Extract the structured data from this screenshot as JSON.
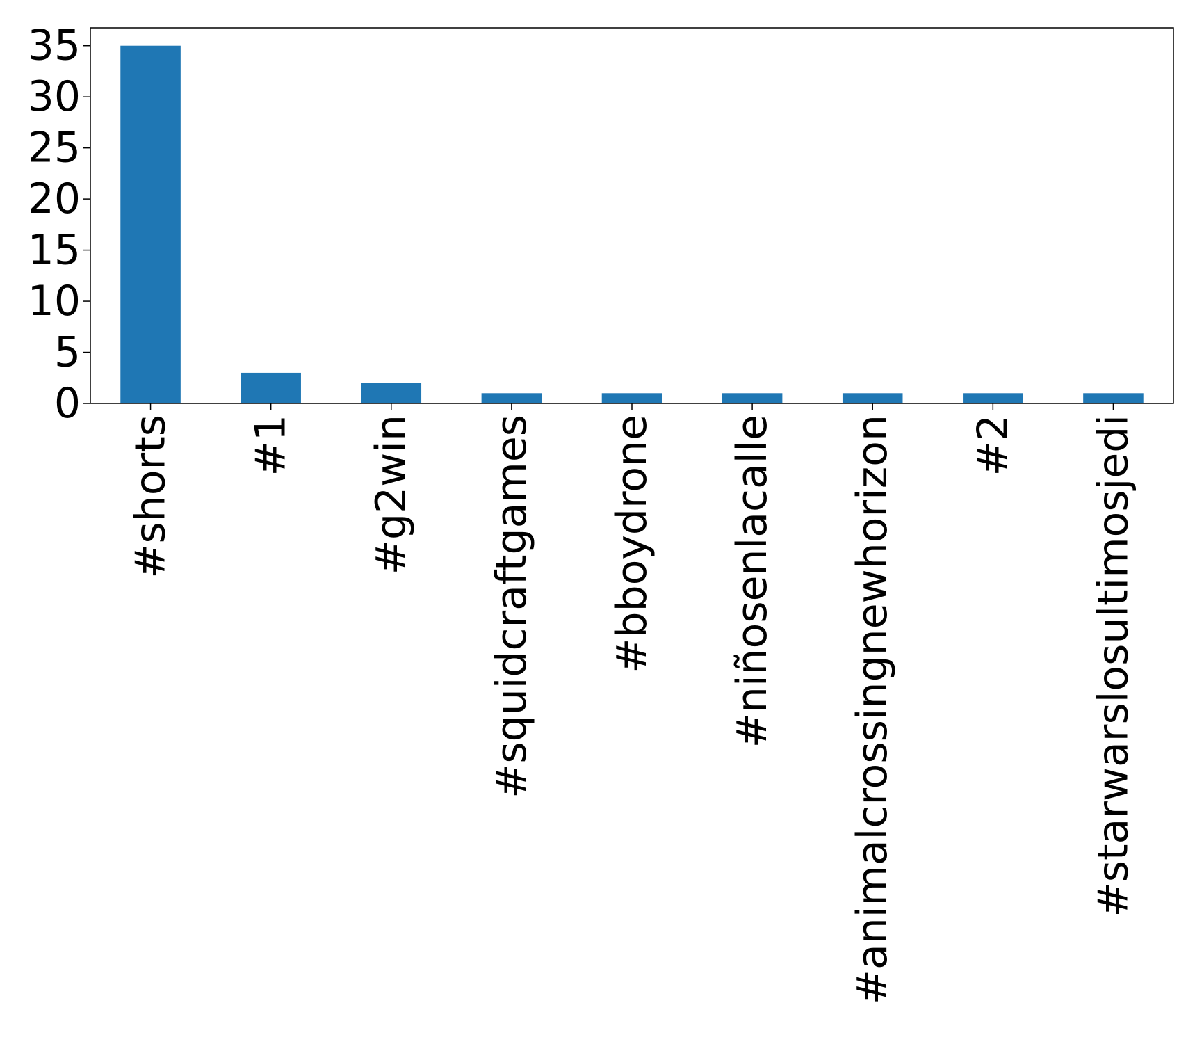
{
  "chart_data": {
    "type": "bar",
    "title": "",
    "xlabel": "",
    "ylabel": "",
    "categories": [
      "#shorts",
      "#1",
      "#g2win",
      "#squidcraftgames",
      "#bboydrone",
      "#niñosenlacalle",
      "#animalcrossingnewhorizon",
      "#2",
      "#starwarslosultimosjedi"
    ],
    "values": [
      35,
      3,
      2,
      1,
      1,
      1,
      1,
      1,
      1
    ],
    "ylim": [
      0,
      36.75
    ],
    "yticks": [
      "0",
      "5",
      "10",
      "15",
      "20",
      "25",
      "30",
      "35"
    ],
    "grid": false,
    "legend": "none",
    "bar_color": "#1f77b4"
  }
}
